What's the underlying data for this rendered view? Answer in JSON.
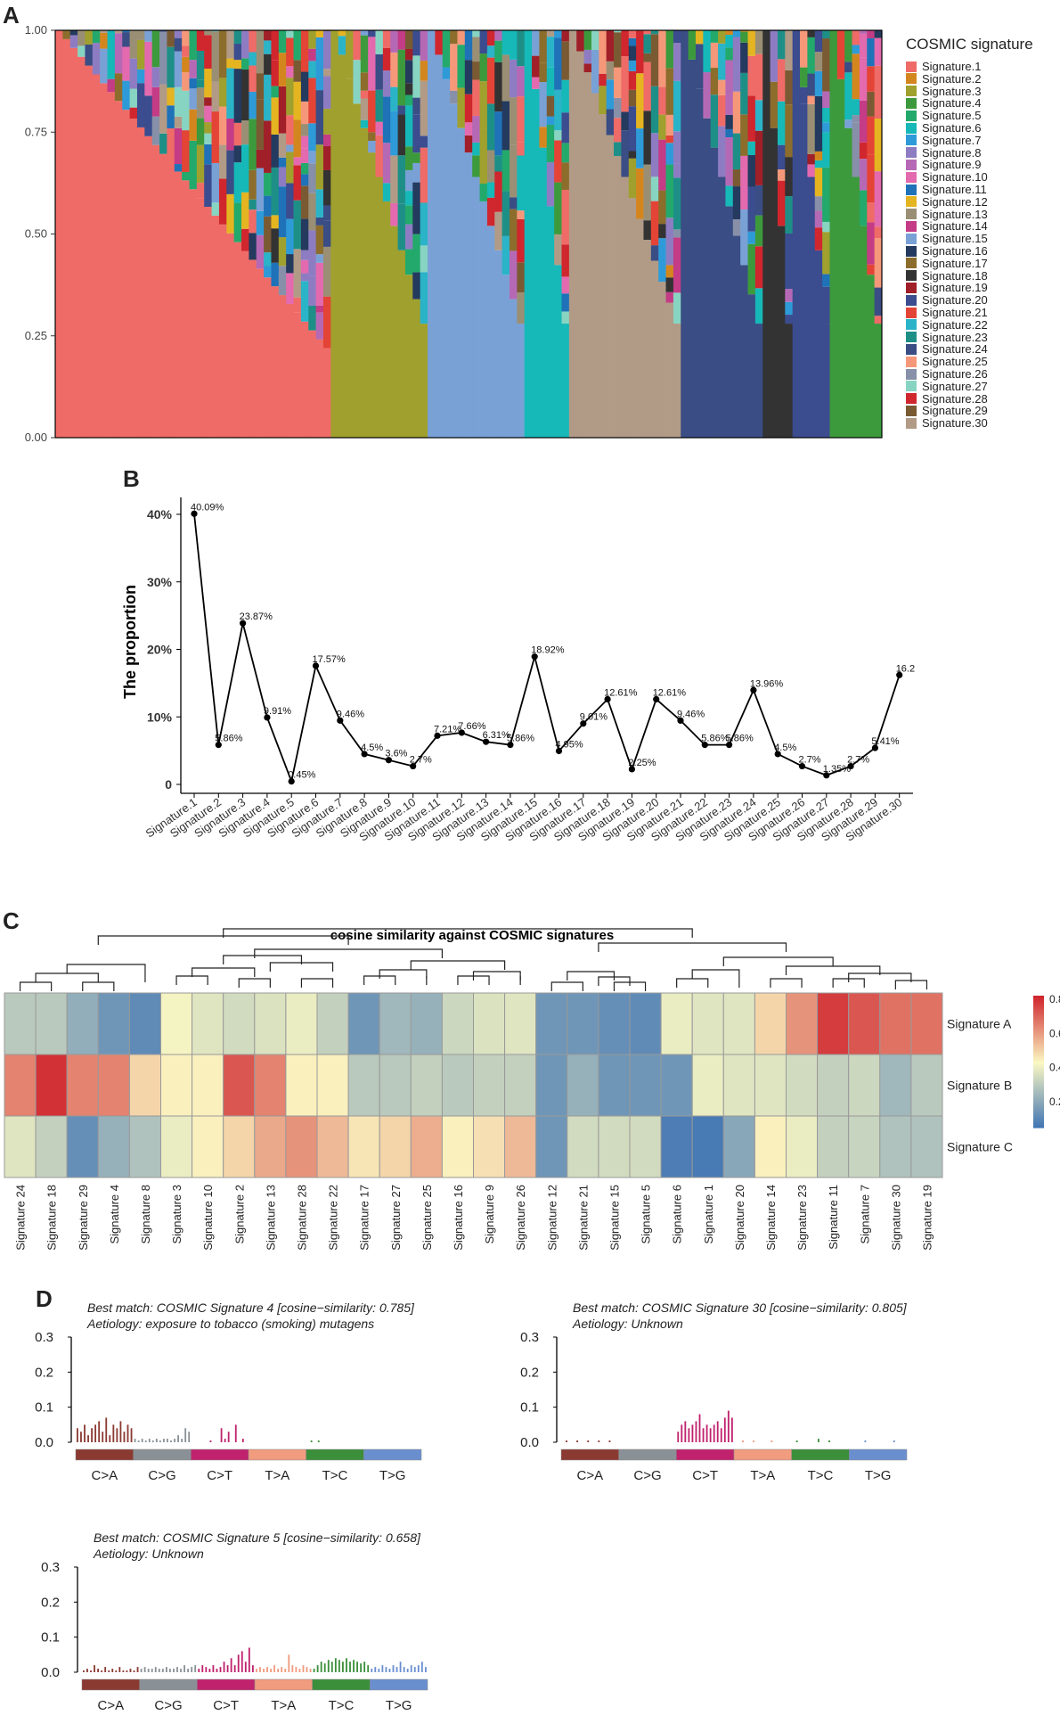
{
  "panels": {
    "a": "A",
    "b": "B",
    "c": "C",
    "d": "D"
  },
  "chart_data": [
    {
      "panel": "A",
      "type": "bar",
      "description_kind": "stacked proportion bars per sample",
      "y_ticks": [
        "1.00",
        "0.75",
        "0.50",
        "0.25",
        "0.00"
      ],
      "ylim": [
        0,
        1
      ],
      "n_samples": 111,
      "legend_title": "COSMIC signature",
      "legend": [
        {
          "name": "Signature.1",
          "color": "#EF6B67"
        },
        {
          "name": "Signature.2",
          "color": "#D4861E"
        },
        {
          "name": "Signature.3",
          "color": "#A0A02E"
        },
        {
          "name": "Signature.4",
          "color": "#3C9A3C"
        },
        {
          "name": "Signature.5",
          "color": "#23A96B"
        },
        {
          "name": "Signature.6",
          "color": "#16B8B8"
        },
        {
          "name": "Signature.7",
          "color": "#2E9BD8"
        },
        {
          "name": "Signature.8",
          "color": "#8E7CC3"
        },
        {
          "name": "Signature.9",
          "color": "#B569B5"
        },
        {
          "name": "Signature.10",
          "color": "#E36AAE"
        },
        {
          "name": "Signature.11",
          "color": "#1F72B8"
        },
        {
          "name": "Signature.12",
          "color": "#E5B421"
        },
        {
          "name": "Signature.13",
          "color": "#9A8F75"
        },
        {
          "name": "Signature.14",
          "color": "#C43B86"
        },
        {
          "name": "Signature.15",
          "color": "#79A1D6"
        },
        {
          "name": "Signature.16",
          "color": "#243A5E"
        },
        {
          "name": "Signature.17",
          "color": "#8C6D2C"
        },
        {
          "name": "Signature.18",
          "color": "#333333"
        },
        {
          "name": "Signature.19",
          "color": "#A01F28"
        },
        {
          "name": "Signature.20",
          "color": "#3B4C8F"
        },
        {
          "name": "Signature.21",
          "color": "#E34436"
        },
        {
          "name": "Signature.22",
          "color": "#2BB3C8"
        },
        {
          "name": "Signature.23",
          "color": "#1E8F87"
        },
        {
          "name": "Signature.24",
          "color": "#3A4D84"
        },
        {
          "name": "Signature.25",
          "color": "#F5987A"
        },
        {
          "name": "Signature.26",
          "color": "#8790A8"
        },
        {
          "name": "Signature.27",
          "color": "#88D4C2"
        },
        {
          "name": "Signature.28",
          "color": "#D0262E"
        },
        {
          "name": "Signature.29",
          "color": "#7A5A33"
        },
        {
          "name": "Signature.30",
          "color": "#B19B86"
        }
      ]
    },
    {
      "panel": "B",
      "type": "line",
      "ylabel": "The proportion",
      "y_ticks": [
        "40%",
        "30%",
        "20%",
        "10%",
        "0"
      ],
      "ylim": [
        0,
        42
      ],
      "x": [
        "Signature.1",
        "Signature.2",
        "Signature.3",
        "Signature.4",
        "Signature.5",
        "Signature.6",
        "Signature.7",
        "Signature.8",
        "Signature.9",
        "Signature.10",
        "Signature.11",
        "Signature.12",
        "Signature.13",
        "Signature.14",
        "Signature.15",
        "Signature.16",
        "Signature.17",
        "Signature.18",
        "Signature.19",
        "Signature.20",
        "Signature.21",
        "Signature.22",
        "Signature.23",
        "Signature.24",
        "Signature.25",
        "Signature.26",
        "Signature.27",
        "Signature.28",
        "Signature.29",
        "Signature.30"
      ],
      "values": [
        40.09,
        5.86,
        23.87,
        9.91,
        0.45,
        17.57,
        9.46,
        4.5,
        3.6,
        2.7,
        7.21,
        7.66,
        6.31,
        5.86,
        18.92,
        4.95,
        9.01,
        12.61,
        2.25,
        12.61,
        9.46,
        5.86,
        5.86,
        13.96,
        4.5,
        2.7,
        1.35,
        2.7,
        5.41,
        16.2
      ],
      "labels": [
        "40.09%",
        "5.86%",
        "23.87%",
        "9.91%",
        "0.45%",
        "17.57%",
        "9.46%",
        "4.5%",
        "3.6%",
        "2.7%",
        "7.21%",
        "7.66%",
        "6.31%",
        "5.86%",
        "18.92%",
        "4.95%",
        "9.01%",
        "12.61%",
        "2.25%",
        "12.61%",
        "9.46%",
        "5.86%",
        "5.86%",
        "13.96%",
        "4.5%",
        "2.7%",
        "1.35%",
        "2.7%",
        "5.41%",
        "16.2"
      ]
    },
    {
      "panel": "C",
      "type": "heatmap",
      "title": "cosine similarity against COSMIC signatures",
      "rows": [
        "Signature A",
        "Signature B",
        "Signature C"
      ],
      "columns": [
        "Signature 24",
        "Signature 18",
        "Signature 29",
        "Signature 4",
        "Signature 8",
        "Signature 3",
        "Signature 10",
        "Signature 2",
        "Signature 13",
        "Signature 28",
        "Signature 22",
        "Signature 17",
        "Signature 27",
        "Signature 25",
        "Signature 16",
        "Signature 9",
        "Signature 26",
        "Signature 12",
        "Signature 21",
        "Signature 15",
        "Signature 5",
        "Signature 6",
        "Signature 1",
        "Signature 20",
        "Signature 14",
        "Signature 23",
        "Signature 11",
        "Signature 7",
        "Signature 30",
        "Signature 19"
      ],
      "values": [
        [
          0.3,
          0.3,
          0.22,
          0.15,
          0.12,
          0.42,
          0.38,
          0.35,
          0.37,
          0.4,
          0.32,
          0.15,
          0.25,
          0.23,
          0.34,
          0.37,
          0.38,
          0.15,
          0.15,
          0.13,
          0.12,
          0.4,
          0.38,
          0.38,
          0.5,
          0.62,
          0.78,
          0.73,
          0.68,
          0.68
        ],
        [
          0.65,
          0.8,
          0.65,
          0.65,
          0.5,
          0.45,
          0.45,
          0.73,
          0.65,
          0.45,
          0.45,
          0.3,
          0.3,
          0.32,
          0.3,
          0.32,
          0.32,
          0.15,
          0.23,
          0.15,
          0.15,
          0.15,
          0.4,
          0.38,
          0.38,
          0.35,
          0.32,
          0.34,
          0.25,
          0.3
        ],
        [
          0.38,
          0.32,
          0.13,
          0.23,
          0.28,
          0.4,
          0.45,
          0.5,
          0.58,
          0.62,
          0.55,
          0.47,
          0.5,
          0.57,
          0.45,
          0.48,
          0.55,
          0.15,
          0.35,
          0.35,
          0.35,
          0.08,
          0.07,
          0.2,
          0.45,
          0.4,
          0.32,
          0.33,
          0.28,
          0.28
        ]
      ],
      "colorbar_ticks": [
        "0.8",
        "0.6",
        "0.4",
        "0.2"
      ],
      "range": [
        0.05,
        0.82
      ]
    },
    {
      "panel": "D1",
      "type": "bar",
      "title_line1": "Best match: COSMIC Signature 4 [cosine−similarity: 0.785]",
      "title_line2": "Aetiology: exposure to tobacco (smoking) mutagens",
      "y_ticks": [
        "0.3",
        "0.2",
        "0.1",
        "0.0"
      ],
      "ylim": [
        0,
        0.3
      ],
      "categories": [
        "C>A",
        "C>G",
        "C>T",
        "T>A",
        "T>C",
        "T>G"
      ],
      "values": [
        [
          0.04,
          0.03,
          0.05,
          0.02,
          0.04,
          0.05,
          0.06,
          0.03,
          0.07,
          0.02,
          0.05,
          0.04,
          0.06,
          0.03,
          0.05,
          0.04
        ],
        [
          0.01,
          0.005,
          0.01,
          0.005,
          0.01,
          0.005,
          0.01,
          0.005,
          0.01,
          0.01,
          0.005,
          0.01,
          0.02,
          0.01,
          0.04,
          0.03
        ],
        [
          0.0,
          0.0,
          0.0,
          0.0,
          0.0,
          0.005,
          0.0,
          0.0,
          0.04,
          0.01,
          0.03,
          0.0,
          0.05,
          0.0,
          0.01,
          0.0
        ],
        [
          0.0,
          0.0,
          0.0,
          0.0,
          0.0,
          0.0,
          0.0,
          0.0,
          0.0,
          0.0,
          0.0,
          0.0,
          0.0,
          0.0,
          0.0,
          0.0
        ],
        [
          0.0,
          0.005,
          0.0,
          0.005,
          0.0,
          0.0,
          0.0,
          0.0,
          0.0,
          0.0,
          0.0,
          0.0,
          0.0,
          0.0,
          0.0,
          0.0
        ],
        [
          0.0,
          0.0,
          0.0,
          0.0,
          0.0,
          0.0,
          0.0,
          0.0,
          0.0,
          0.0,
          0.0,
          0.0,
          0.0,
          0.0,
          0.0,
          0.0
        ]
      ]
    },
    {
      "panel": "D2",
      "type": "bar",
      "title_line1": "Best match: COSMIC Signature 30 [cosine−similarity: 0.805]",
      "title_line2": "Aetiology: Unknown",
      "y_ticks": [
        "0.3",
        "0.2",
        "0.1",
        "0.0"
      ],
      "ylim": [
        0,
        0.3
      ],
      "categories": [
        "C>A",
        "C>G",
        "C>T",
        "T>A",
        "T>C",
        "T>G"
      ],
      "values": [
        [
          0.0,
          0.005,
          0.0,
          0.0,
          0.005,
          0.0,
          0.0,
          0.005,
          0.0,
          0.0,
          0.005,
          0.0,
          0.0,
          0.005,
          0.0,
          0.0
        ],
        [
          0.0,
          0.0,
          0.0,
          0.0,
          0.0,
          0.0,
          0.0,
          0.0,
          0.0,
          0.0,
          0.0,
          0.0,
          0.0,
          0.0,
          0.0,
          0.0
        ],
        [
          0.03,
          0.05,
          0.06,
          0.04,
          0.05,
          0.06,
          0.08,
          0.04,
          0.05,
          0.04,
          0.05,
          0.06,
          0.04,
          0.07,
          0.09,
          0.07
        ],
        [
          0.0,
          0.0,
          0.005,
          0.0,
          0.0,
          0.005,
          0.0,
          0.0,
          0.0,
          0.0,
          0.005,
          0.0,
          0.0,
          0.0,
          0.0,
          0.0
        ],
        [
          0.0,
          0.005,
          0.0,
          0.0,
          0.0,
          0.0,
          0.0,
          0.01,
          0.0,
          0.0,
          0.005,
          0.0,
          0.0,
          0.0,
          0.0,
          0.0
        ],
        [
          0.0,
          0.0,
          0.0,
          0.0,
          0.005,
          0.0,
          0.0,
          0.0,
          0.0,
          0.0,
          0.0,
          0.0,
          0.005,
          0.0,
          0.0,
          0.0
        ]
      ]
    },
    {
      "panel": "D3",
      "type": "bar",
      "title_line1": "Best match: COSMIC Signature 5 [cosine−similarity: 0.658]",
      "title_line2": "Aetiology: Unknown",
      "y_ticks": [
        "0.3",
        "0.2",
        "0.1",
        "0.0"
      ],
      "ylim": [
        0,
        0.3
      ],
      "categories": [
        "C>A",
        "C>G",
        "C>T",
        "T>A",
        "T>C",
        "T>G"
      ],
      "values": [
        [
          0.005,
          0.01,
          0.005,
          0.02,
          0.01,
          0.005,
          0.015,
          0.005,
          0.01,
          0.005,
          0.015,
          0.005,
          0.005,
          0.01,
          0.005,
          0.015
        ],
        [
          0.01,
          0.015,
          0.01,
          0.01,
          0.015,
          0.01,
          0.01,
          0.015,
          0.01,
          0.01,
          0.015,
          0.01,
          0.02,
          0.01,
          0.015,
          0.02
        ],
        [
          0.01,
          0.02,
          0.015,
          0.01,
          0.02,
          0.01,
          0.015,
          0.03,
          0.02,
          0.04,
          0.02,
          0.05,
          0.06,
          0.03,
          0.07,
          0.02
        ],
        [
          0.01,
          0.015,
          0.01,
          0.015,
          0.01,
          0.02,
          0.01,
          0.015,
          0.01,
          0.05,
          0.02,
          0.015,
          0.01,
          0.02,
          0.015,
          0.01
        ],
        [
          0.01,
          0.02,
          0.03,
          0.025,
          0.035,
          0.03,
          0.04,
          0.035,
          0.03,
          0.04,
          0.03,
          0.035,
          0.03,
          0.025,
          0.03,
          0.02
        ],
        [
          0.01,
          0.015,
          0.01,
          0.02,
          0.015,
          0.01,
          0.02,
          0.015,
          0.03,
          0.015,
          0.01,
          0.02,
          0.015,
          0.02,
          0.03,
          0.015
        ]
      ]
    }
  ],
  "colors": {
    "mut_CA": "#8B3A32",
    "mut_CG": "#8A9196",
    "mut_CT": "#C0226D",
    "mut_TA": "#F19B7F",
    "mut_TC": "#3B8F3B",
    "mut_TG": "#6A8FCF",
    "heat_low": "#3E73B3",
    "heat_mid": "#FBF8C3",
    "heat_high": "#D0262E"
  }
}
